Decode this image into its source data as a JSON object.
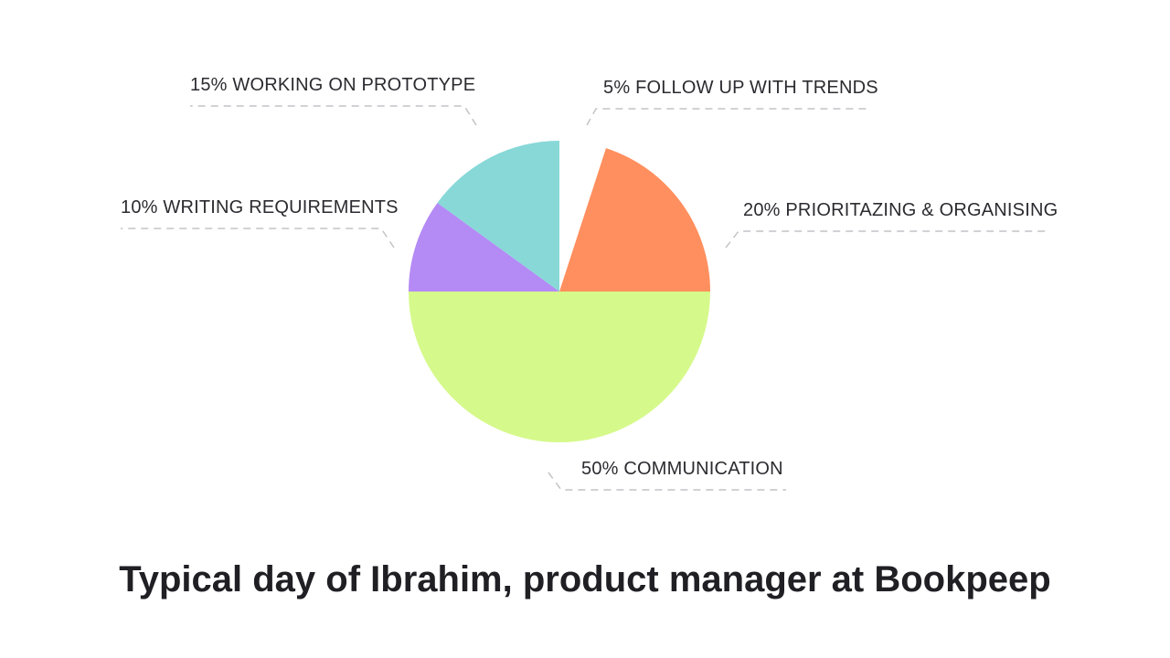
{
  "chart_data": {
    "type": "pie",
    "title": "Typical day of Ibrahim, product manager at Bookpeep",
    "slices": [
      {
        "label": "5% FOLLOW UP WITH TRENDS",
        "value": 5,
        "color": "#ffffff",
        "exploded": true
      },
      {
        "label": "20% PRIORITAZING & ORGANISING",
        "value": 20,
        "color": "#ff8f5e"
      },
      {
        "label": "50% COMMUNICATION",
        "value": 50,
        "color": "#d6f98b"
      },
      {
        "label": "10% WRITING REQUIREMENTS",
        "value": 10,
        "color": "#b48af5"
      },
      {
        "label": "15% WORKING ON PROTOTYPE",
        "value": 15,
        "color": "#88d8d8"
      }
    ],
    "legend": "callouts"
  }
}
